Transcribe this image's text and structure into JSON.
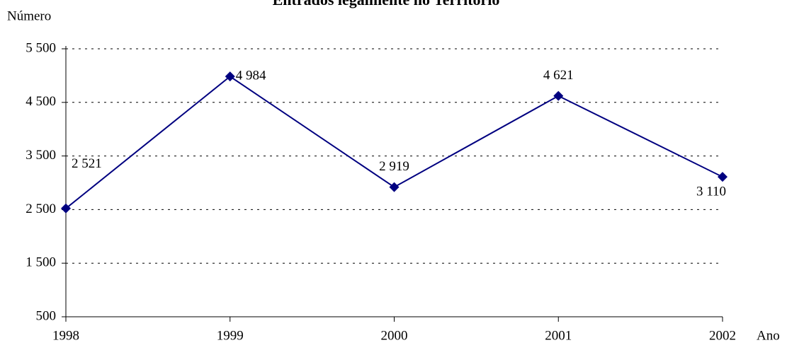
{
  "chart_data": {
    "type": "line",
    "title": "Entrados legalmente no Território",
    "ylabel": "Número",
    "xlabel": "Ano",
    "categories": [
      "1998",
      "1999",
      "2000",
      "2001",
      "2002"
    ],
    "series": [
      {
        "name": "Entrados",
        "color": "#000080",
        "values": [
          2521,
          4984,
          2919,
          4621,
          3110
        ],
        "value_labels": [
          "2 521",
          "4 984",
          "2 919",
          "4 621",
          "3 110"
        ]
      }
    ],
    "ylim": [
      500,
      5500
    ],
    "yticks": [
      500,
      {
        "value": 1500,
        "label": "1 500"
      },
      {
        "value": 2500,
        "label": "2 500"
      },
      {
        "value": 3500,
        "label": "3 500"
      },
      {
        "value": 4500,
        "label": "4 500"
      },
      {
        "value": 5500,
        "label": "5 500"
      }
    ],
    "grid": true
  }
}
